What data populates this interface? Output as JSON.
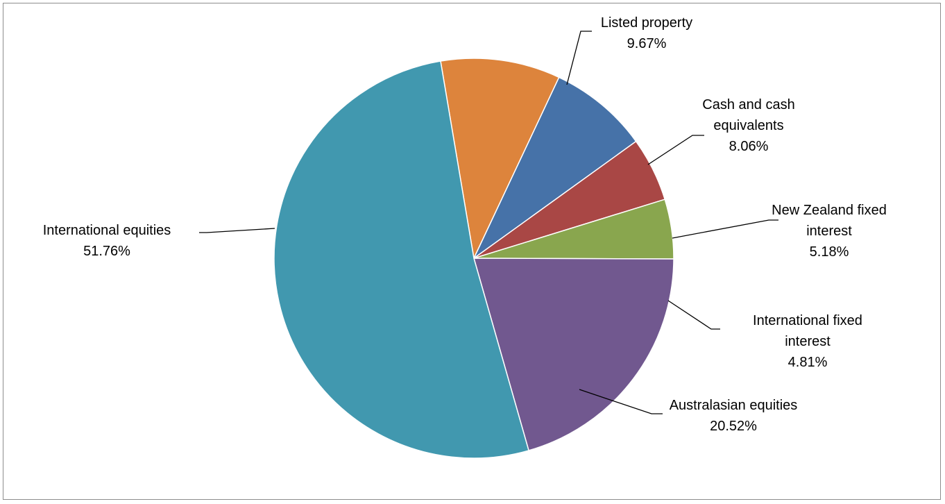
{
  "chart_data": {
    "type": "pie",
    "title": "",
    "start_angle_deg": -9.6,
    "direction": "clockwise",
    "slices": [
      {
        "label_lines": [
          "Listed property"
        ],
        "label": "Listed property",
        "value": 9.67,
        "value_text": "9.67%",
        "color": "#DD843C"
      },
      {
        "label_lines": [
          "Cash and cash",
          "equivalents"
        ],
        "label": "Cash and cash equivalents",
        "value": 8.06,
        "value_text": "8.06%",
        "color": "#4672A8"
      },
      {
        "label_lines": [
          "New Zealand fixed",
          "interest"
        ],
        "label": "New Zealand fixed interest",
        "value": 5.18,
        "value_text": "5.18%",
        "color": "#A94745"
      },
      {
        "label_lines": [
          "International fixed",
          "interest"
        ],
        "label": "International fixed interest",
        "value": 4.81,
        "value_text": "4.81%",
        "color": "#89A64E"
      },
      {
        "label_lines": [
          "Australasian equities"
        ],
        "label": "Australasian equities",
        "value": 20.52,
        "value_text": "20.52%",
        "color": "#71588F"
      },
      {
        "label_lines": [
          "International equities"
        ],
        "label": "International equities",
        "value": 51.76,
        "value_text": "51.76%",
        "color": "#4198AF"
      }
    ]
  }
}
